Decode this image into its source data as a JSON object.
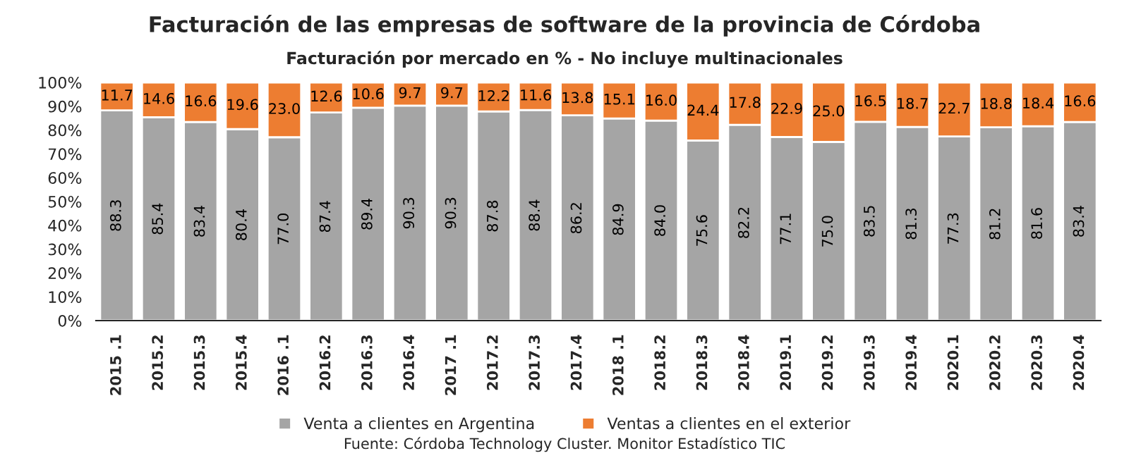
{
  "chart_data": {
    "type": "bar",
    "title": "Facturación de las empresas de software de la provincia de Córdoba",
    "subtitle": "Facturación por mercado en % - No incluye multinacionales",
    "categories": [
      "2015 .1",
      "2015.2",
      "2015.3",
      "2015.4",
      "2016 .1",
      "2016.2",
      "2016.3",
      "2016.4",
      "2017 .1",
      "2017.2",
      "2017.3",
      "2017.4",
      "2018 .1",
      "2018.2",
      "2018.3",
      "2018.4",
      "2019.1",
      "2019.2",
      "2019.3",
      "2019.4",
      "2020.1",
      "2020.2",
      "2020.3",
      "2020.4"
    ],
    "stacked": true,
    "legend": "bottom",
    "grid": false,
    "series": [
      {
        "name": "Venta a clientes en Argentina",
        "color": "#a5a5a5",
        "values": [
          88.3,
          85.4,
          83.4,
          80.4,
          77.0,
          87.4,
          89.4,
          90.3,
          90.3,
          87.8,
          88.4,
          86.2,
          84.9,
          84.0,
          75.6,
          82.2,
          77.1,
          75.0,
          83.5,
          81.3,
          77.3,
          81.2,
          81.6,
          83.4
        ],
        "value_labels": [
          "88.3",
          "85.4",
          "83.4",
          "80.4",
          "77.0",
          "87.4",
          "89.4",
          "90.3",
          "90.3",
          "87.8",
          "88.4",
          "86.2",
          "84.9",
          "84.0",
          "75.6",
          "82.2",
          "77.1",
          "75.0",
          "83.5",
          "81.3",
          "77.3",
          "81.2",
          "81.6",
          "83.4"
        ]
      },
      {
        "name": "Ventas a clientes en el exterior",
        "color": "#ed7d31",
        "values": [
          11.7,
          14.6,
          16.6,
          19.6,
          23.0,
          12.6,
          10.6,
          9.7,
          9.7,
          12.2,
          11.6,
          13.8,
          15.1,
          16.0,
          24.4,
          17.8,
          22.9,
          25.0,
          16.5,
          18.7,
          22.7,
          18.8,
          18.4,
          16.6
        ],
        "value_labels": [
          "11.7",
          "14.6",
          "16.6",
          "19.6",
          "23.0",
          "12.6",
          "10.6",
          "9.7",
          "9.7",
          "12.2",
          "11.6",
          "13.8",
          "15.1",
          "16.0",
          "24.4",
          "17.8",
          "22.9",
          "25.0",
          "16.5",
          "18.7",
          "22.7",
          "18.8",
          "18.4",
          "16.6"
        ]
      }
    ],
    "ylim": [
      0,
      100
    ],
    "yticks": [
      {
        "value": 0,
        "label": "0%"
      },
      {
        "value": 10,
        "label": "10%"
      },
      {
        "value": 20,
        "label": "20%"
      },
      {
        "value": 30,
        "label": "30%"
      },
      {
        "value": 40,
        "label": "40%"
      },
      {
        "value": 50,
        "label": "50%"
      },
      {
        "value": 60,
        "label": "60%"
      },
      {
        "value": 70,
        "label": "70%"
      },
      {
        "value": 80,
        "label": "80%"
      },
      {
        "value": 90,
        "label": "90%"
      },
      {
        "value": 100,
        "label": "100%"
      }
    ],
    "annotations": [
      "Fuente: Córdoba Technology Cluster. Monitor Estadístico TIC"
    ]
  }
}
